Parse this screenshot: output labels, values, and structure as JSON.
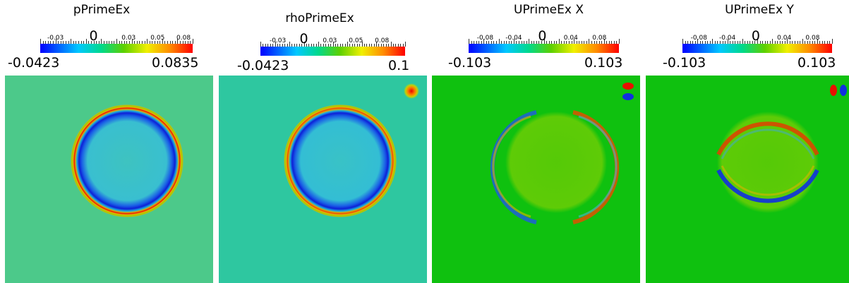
{
  "panels": [
    {
      "title": "pPrimeEx",
      "range_min": "-0.0423",
      "range_max": "0.0835",
      "tick_labels": [
        "-0.03",
        "0",
        "0.03",
        "0.05",
        "0.08"
      ],
      "background": "#4cc98a"
    },
    {
      "title": "rhoPrimeEx",
      "range_min": "-0.0423",
      "range_max": "0.1",
      "tick_labels": [
        "-0.03",
        "0",
        "0.03",
        "0.05",
        "0.08"
      ],
      "background": "#2ec7a0"
    },
    {
      "title": "UPrimeEx X",
      "range_min": "-0.103",
      "range_max": "0.103",
      "tick_labels": [
        "-0.08",
        "-0.04",
        "0",
        "0.04",
        "0.08"
      ],
      "background": "#0fc10f"
    },
    {
      "title": "UPrimeEx Y",
      "range_min": "-0.103",
      "range_max": "0.103",
      "tick_labels": [
        "-0.08",
        "-0.04",
        "0",
        "0.04",
        "0.08"
      ],
      "background": "#0fc10f"
    }
  ],
  "colormap": [
    "#0000ff",
    "#00c8ff",
    "#00d98c",
    "#5ed000",
    "#f0f000",
    "#ff8c00",
    "#ff0000"
  ]
}
